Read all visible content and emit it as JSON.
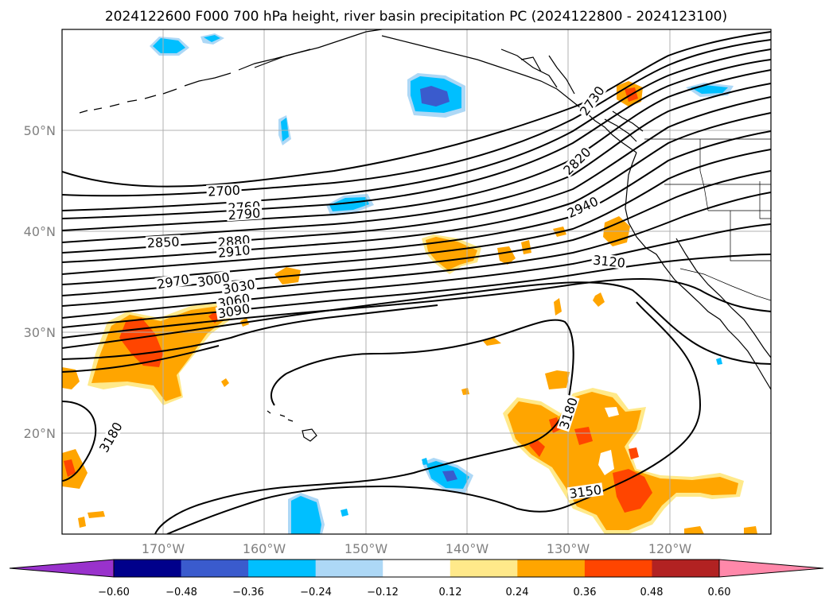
{
  "title": "2024122600 F000 700 hPa height, river basin precipitation PC (2024122800 - 2024123100)",
  "map": {
    "lon_range": [
      -180,
      -110
    ],
    "lat_range": [
      10,
      60
    ],
    "lon_ticks": [
      {
        "value": -170,
        "label": "170°W"
      },
      {
        "value": -160,
        "label": "160°W"
      },
      {
        "value": -150,
        "label": "150°W"
      },
      {
        "value": -140,
        "label": "140°W"
      },
      {
        "value": -130,
        "label": "130°W"
      },
      {
        "value": -120,
        "label": "120°W"
      }
    ],
    "lat_ticks": [
      {
        "value": 20,
        "label": "20°N"
      },
      {
        "value": 30,
        "label": "30°N"
      },
      {
        "value": 40,
        "label": "40°N"
      },
      {
        "value": 50,
        "label": "50°N"
      }
    ],
    "contour_labels": [
      {
        "text": "2700",
        "lon": -164,
        "lat": 43.8,
        "rot": -3
      },
      {
        "text": "2760",
        "lon": -162,
        "lat": 42.2,
        "rot": -4
      },
      {
        "text": "2790",
        "lon": -162,
        "lat": 41.5,
        "rot": -4
      },
      {
        "text": "2850",
        "lon": -170,
        "lat": 38.7,
        "rot": -3
      },
      {
        "text": "2880",
        "lon": -163,
        "lat": 38.8,
        "rot": -5
      },
      {
        "text": "2910",
        "lon": -163,
        "lat": 37.8,
        "rot": -6
      },
      {
        "text": "2970",
        "lon": -169,
        "lat": 34.8,
        "rot": -10
      },
      {
        "text": "3000",
        "lon": -165,
        "lat": 35.0,
        "rot": -10
      },
      {
        "text": "3030",
        "lon": -162.5,
        "lat": 34.3,
        "rot": -10
      },
      {
        "text": "3060",
        "lon": -163,
        "lat": 32.9,
        "rot": -10
      },
      {
        "text": "3090",
        "lon": -163,
        "lat": 31.9,
        "rot": -10
      },
      {
        "text": "3120",
        "lon": -126,
        "lat": 36.8,
        "rot": 6
      },
      {
        "text": "3180",
        "lon": -175,
        "lat": 19.5,
        "rot": -60
      },
      {
        "text": "3180",
        "lon": -129.8,
        "lat": 21.9,
        "rot": -72
      },
      {
        "text": "3150",
        "lon": -128.3,
        "lat": 14,
        "rot": -8
      },
      {
        "text": "2820",
        "lon": -129,
        "lat": 46.8,
        "rot": -45
      },
      {
        "text": "2940",
        "lon": -128.5,
        "lat": 42.2,
        "rot": -25
      },
      {
        "text": "2730",
        "lon": -127.5,
        "lat": 52.8,
        "rot": -55
      }
    ]
  },
  "colorbar": {
    "ticks": [
      "−0.60",
      "−0.48",
      "−0.36",
      "−0.24",
      "−0.12",
      "0.12",
      "0.24",
      "0.36",
      "0.48",
      "0.60"
    ],
    "colors": [
      "#9932cc",
      "#00008b",
      "#3a5bcd",
      "#00bfff",
      "#add8f6",
      "#ffffff",
      "#ffe98a",
      "#ffa500",
      "#ff4500",
      "#b22222",
      "#ff88aa"
    ]
  },
  "colors": {
    "neg_strong": "#3a5bcd",
    "neg": "#00bfff",
    "neg_light": "#add8f6",
    "pos_light": "#ffe98a",
    "pos": "#ffa500",
    "pos_strong": "#ff4500"
  }
}
